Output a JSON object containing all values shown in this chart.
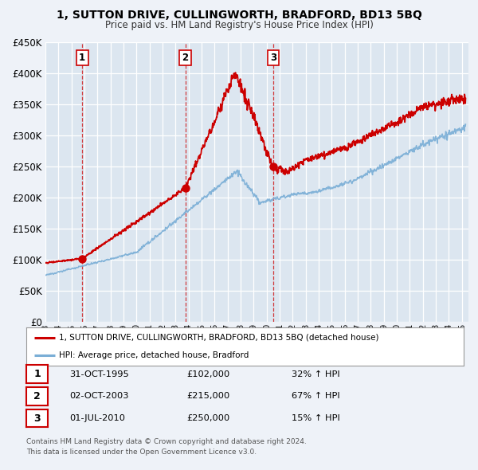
{
  "title": "1, SUTTON DRIVE, CULLINGWORTH, BRADFORD, BD13 5BQ",
  "subtitle": "Price paid vs. HM Land Registry's House Price Index (HPI)",
  "ylim": [
    0,
    450000
  ],
  "ytick_step": 50000,
  "bg_color": "#eef2f8",
  "plot_bg_color": "#dce6f0",
  "grid_color": "#ffffff",
  "red_line_color": "#cc0000",
  "blue_line_color": "#7aaed6",
  "sale_points": [
    {
      "date_num": 1995.83,
      "price": 102000,
      "label": "1"
    },
    {
      "date_num": 2003.75,
      "price": 215000,
      "label": "2"
    },
    {
      "date_num": 2010.5,
      "price": 250000,
      "label": "3"
    }
  ],
  "legend_line1": "1, SUTTON DRIVE, CULLINGWORTH, BRADFORD, BD13 5BQ (detached house)",
  "legend_line2": "HPI: Average price, detached house, Bradford",
  "table_rows": [
    {
      "num": "1",
      "date": "31-OCT-1995",
      "price": "£102,000",
      "hpi": "32% ↑ HPI"
    },
    {
      "num": "2",
      "date": "02-OCT-2003",
      "price": "£215,000",
      "hpi": "67% ↑ HPI"
    },
    {
      "num": "3",
      "date": "01-JUL-2010",
      "price": "£250,000",
      "hpi": "15% ↑ HPI"
    }
  ],
  "footnote1": "Contains HM Land Registry data © Crown copyright and database right 2024.",
  "footnote2": "This data is licensed under the Open Government Licence v3.0.",
  "xmin": 1993.0,
  "xmax": 2025.5
}
